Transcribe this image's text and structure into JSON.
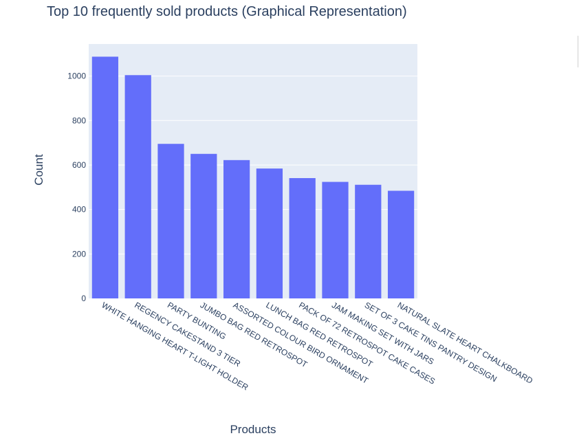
{
  "chart_data": {
    "type": "bar",
    "title": "Top 10 frequently sold products (Graphical Representation)",
    "xlabel": "Products",
    "ylabel": "Count",
    "categories": [
      "WHITE HANGING HEART T-LIGHT HOLDER",
      "REGENCY CAKESTAND 3 TIER",
      "PARTY BUNTING",
      "JUMBO BAG RED RETROSPOT",
      "ASSORTED COLOUR BIRD ORNAMENT",
      "LUNCH BAG RED RETROSPOT",
      "PACK OF 72 RETROSPOT CAKE CASES",
      "JAM MAKING SET WITH JARS",
      "SET OF 3 CAKE TINS PANTRY DESIGN",
      "NATURAL SLATE HEART CHALKBOARD"
    ],
    "values": [
      1087,
      1004,
      695,
      650,
      622,
      584,
      541,
      524,
      511,
      484
    ],
    "ylim": [
      0,
      1144
    ],
    "yticks": [
      0,
      200,
      400,
      600,
      800,
      1000
    ],
    "grid": true,
    "bar_color": "#636efa",
    "plot_bg": "#e5ecf6",
    "grid_color": "#ffffff"
  }
}
